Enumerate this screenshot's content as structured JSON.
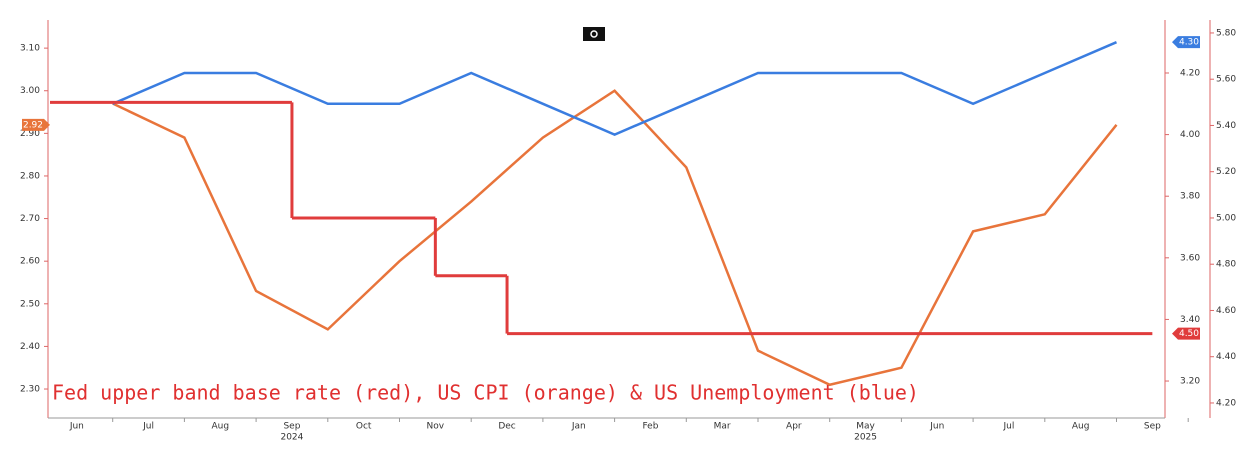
{
  "chart_data": {
    "type": "line",
    "title": "Fed upper band base rate (red), US CPI (orange) & US Unemployment (blue)",
    "months": [
      "Jun",
      "Jul",
      "Aug",
      "Sep",
      "Oct",
      "Nov",
      "Dec",
      "Jan",
      "Feb",
      "Mar",
      "Apr",
      "May",
      "Jun",
      "Jul",
      "Aug",
      "Sep"
    ],
    "year_labels": [
      null,
      null,
      null,
      "2024",
      null,
      null,
      null,
      null,
      null,
      null,
      null,
      "2025",
      null,
      null,
      null,
      null
    ],
    "ylim": [
      2.232,
      3.166
    ],
    "yticks": [
      {
        "value": 2.3,
        "label": "2.30"
      },
      {
        "value": 2.4,
        "label": "2.40"
      },
      {
        "value": 2.5,
        "label": "2.50"
      },
      {
        "value": 2.6,
        "label": "2.60"
      },
      {
        "value": 2.7,
        "label": "2.70"
      },
      {
        "value": 2.8,
        "label": "2.80"
      },
      {
        "value": 2.9,
        "label": "2.90"
      },
      {
        "value": 3.0,
        "label": "3.00"
      },
      {
        "value": 3.1,
        "label": "3.10"
      }
    ],
    "y2lim": [
      3.08,
      4.372
    ],
    "y2ticks": [
      {
        "value": 3.2,
        "label": "3.20"
      },
      {
        "value": 3.4,
        "label": "3.40"
      },
      {
        "value": 3.6,
        "label": "3.60"
      },
      {
        "value": 3.8,
        "label": "3.80"
      },
      {
        "value": 4.0,
        "label": "4.00"
      },
      {
        "value": 4.2,
        "label": "4.20"
      }
    ],
    "y3lim": [
      4.135,
      5.856
    ],
    "y3ticks": [
      {
        "value": 4.2,
        "label": "4.20"
      },
      {
        "value": 4.4,
        "label": "4.40"
      },
      {
        "value": 4.6,
        "label": "4.60"
      },
      {
        "value": 4.8,
        "label": "4.80"
      },
      {
        "value": 5.0,
        "label": "5.00"
      },
      {
        "value": 5.2,
        "label": "5.20"
      },
      {
        "value": 5.4,
        "label": "5.40"
      },
      {
        "value": 5.6,
        "label": "5.60"
      },
      {
        "value": 5.8,
        "label": "5.80"
      }
    ],
    "series": [
      {
        "name": "US CPI",
        "color": "#e8743b",
        "axis": "y",
        "x": [
          "2024-06",
          "2024-07",
          "2024-08",
          "2024-09",
          "2024-10",
          "2024-11",
          "2024-12",
          "2025-01",
          "2025-02",
          "2025-03",
          "2025-04",
          "2025-05",
          "2025-06",
          "2025-07",
          "2025-08"
        ],
        "values": [
          2.97,
          2.89,
          2.53,
          2.44,
          2.6,
          2.74,
          2.89,
          3.0,
          2.82,
          2.39,
          2.31,
          2.35,
          2.67,
          2.71,
          2.92
        ],
        "value_labels": [
          null,
          null,
          null,
          null,
          null,
          null,
          null,
          null,
          null,
          null,
          null,
          null,
          null,
          null,
          "2.92"
        ]
      },
      {
        "name": "US Unemployment",
        "color": "#3a7de0",
        "axis": "y2",
        "x": [
          "2024-06",
          "2024-07",
          "2024-08",
          "2024-09",
          "2024-10",
          "2024-11",
          "2024-12",
          "2025-01",
          "2025-02",
          "2025-03",
          "2025-04",
          "2025-05",
          "2025-06",
          "2025-07",
          "2025-08"
        ],
        "values": [
          4.1,
          4.2,
          4.2,
          4.1,
          4.1,
          4.2,
          4.1,
          4.0,
          4.1,
          4.2,
          4.2,
          4.2,
          4.1,
          4.2,
          4.3
        ],
        "value_labels": [
          null,
          null,
          null,
          null,
          null,
          null,
          null,
          null,
          null,
          null,
          null,
          null,
          null,
          null,
          "4.30"
        ]
      },
      {
        "name": "Fed upper band base rate",
        "color": "#e03c3c",
        "axis": "y3",
        "step": true,
        "x": [
          "2024-06",
          "2024-09",
          "2024-11",
          "2024-12"
        ],
        "values": [
          5.5,
          5.0,
          4.75,
          4.5
        ],
        "value_labels": [
          null,
          null,
          null,
          "4.50"
        ]
      }
    ]
  }
}
